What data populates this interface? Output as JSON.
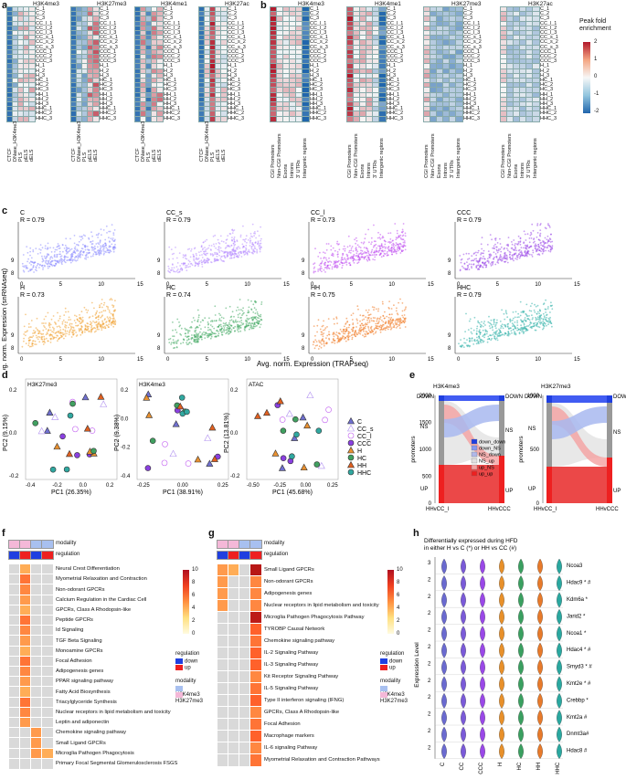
{
  "panels": {
    "a": "a",
    "b": "b",
    "c": "c",
    "d": "d",
    "e": "e",
    "f": "f",
    "g": "g",
    "h": "h"
  },
  "rows": [
    "C_1",
    "C_2",
    "C_3",
    "CC_l_1",
    "CC_l_2",
    "CC_l_3",
    "CC_s_1",
    "CC_s_2",
    "CC_s_3",
    "CCC_1",
    "CCC_2",
    "CCC_3",
    "H_1",
    "H_2",
    "H_3",
    "HC_1",
    "HC_2",
    "HC_3",
    "HH_1",
    "HH_2",
    "HH_3",
    "HHC_1",
    "HHC_2",
    "HHC_3"
  ],
  "panel_a": {
    "titles": [
      "H3K4me3",
      "H3K27me3",
      "H3K4me1",
      "H3K27ac"
    ],
    "cols": [
      "CTCF",
      "DNase_H3K4me3",
      "PLS",
      "pELS",
      "dELS"
    ]
  },
  "panel_b": {
    "titles": [
      "H3K4me3",
      "H3K4me1",
      "H3K27me3",
      "H3K27ac"
    ],
    "cols": [
      "CGI Promoters",
      "Non-CGI Promoters",
      "Exons",
      "Introns",
      "3' UTRs",
      "Intergenic regions"
    ]
  },
  "legend_ab": {
    "title": "Peak fold enrichment",
    "ticks": [
      "2",
      "1",
      "0",
      "-1",
      "-2"
    ]
  },
  "panel_c": {
    "ylabel": "Avg. norm. Expression (snRNAseq)",
    "xlabel": "Avg. norm. Expression (TRAPseq)",
    "plots": [
      {
        "name": "C",
        "r": "R = 0.79",
        "color": "#8c8cff"
      },
      {
        "name": "CC_s",
        "r": "R = 0.79",
        "color": "#b78cff"
      },
      {
        "name": "CC_l",
        "r": "R = 0.73",
        "color": "#c04cf0"
      },
      {
        "name": "CCC",
        "r": "R = 0.79",
        "color": "#9a48e8"
      },
      {
        "name": "H",
        "r": "R = 0.73",
        "color": "#f0a030"
      },
      {
        "name": "HC",
        "r": "R = 0.74",
        "color": "#40a860"
      },
      {
        "name": "HH",
        "r": "R = 0.75",
        "color": "#f07820"
      },
      {
        "name": "HHC",
        "r": "R = 0.79",
        "color": "#30b0a8"
      }
    ],
    "xticks": [
      "0",
      "5",
      "10",
      "15"
    ],
    "yticks": [
      "8",
      "9"
    ]
  },
  "panel_d": {
    "plots": [
      {
        "title": "H3K27me3",
        "xlabel": "PC1 (26.35%)",
        "ylabel": "PC2 (9.15%)",
        "xticks": [
          "-0.4",
          "-0.2",
          "0.0",
          "0.2"
        ],
        "yticks": [
          "0.2",
          "0.0",
          "-0.2"
        ]
      },
      {
        "title": "H3K4me3",
        "xlabel": "PC1 (38.91%)",
        "ylabel": "PC2 (9.38%)",
        "xticks": [
          "-0.25",
          "0.00",
          "0.25"
        ],
        "yticks": [
          "0.2",
          "0.0",
          "-0.2",
          "-0.4"
        ]
      },
      {
        "title": "ATAC",
        "xlabel": "PC1 (45.68%)",
        "ylabel": "PC2 (13.81%)",
        "xticks": [
          "-0.50",
          "-0.25",
          "0.00",
          "0.25"
        ],
        "yticks": [
          "0.2",
          "0.0",
          "-0.2"
        ]
      }
    ],
    "legend": [
      "C",
      "CC_s",
      "CC_l",
      "CCC",
      "H",
      "HC",
      "HH",
      "HHC"
    ]
  },
  "panel_e": {
    "left": {
      "title": "H3K4me3",
      "ylabel": "promoters",
      "yticks": [
        "2000",
        "1500",
        "1000",
        "500",
        "0"
      ],
      "x": [
        "HHvCC_l",
        "HHvCCC"
      ],
      "states": [
        "DOWN",
        "NS",
        "UP"
      ]
    },
    "right": {
      "title": "H3K27me3",
      "ylabel": "promoters",
      "yticks": [
        "1000",
        "500",
        "0"
      ],
      "x": [
        "HHvCC_l",
        "HHvCCC"
      ],
      "states": [
        "DOWN",
        "NS",
        "UP"
      ]
    },
    "legend": [
      "down_down",
      "down_NS",
      "NS_down",
      "NS_up",
      "up_NS",
      "up_up"
    ]
  },
  "panel_f": {
    "header": [
      "modality",
      "regulation"
    ],
    "rows": [
      "Neural Crest Differentiation",
      "Myometrial Relaxation and Contraction",
      "Non-odorant GPCRs",
      "Calcium Regulation in the Cardiac Cell",
      "GPCRs, Class A Rhodopsin-like",
      "Peptide GPCRs",
      "Id Signaling",
      "TGF Beta Signaling",
      "Monoamine GPCRs",
      "Focal Adhesion",
      "Adipogenesis genes",
      "PPAR signaling pathway",
      "Fatty Acid Biosynthesis",
      "Triacylglyceride Synthesis",
      "Nuclear receptors in lipid metabolism and toxicity",
      "Leptin and adiponectin",
      "Chemokine signaling pathway",
      "Small Ligand GPCRs",
      "Microglia Pathogen Phagocytosis",
      "Primary Focal Segmental Glomerulosclerosis FSGS"
    ],
    "scale": [
      "10",
      "8",
      "6",
      "4",
      "2",
      "0"
    ]
  },
  "panel_g": {
    "rows": [
      "Small Ligand GPCRs",
      "Non-odorant GPCRs",
      "Adipogenesis genes",
      "Nuclear receptors in lipid metabolism and toxicity",
      "Microglia Pathogen Phagocytosis Pathway",
      "TYROBP Causal Network",
      "Chemokine signaling pathway",
      "IL-2 Signaling Pathway",
      "IL-3 Signaling Pathway",
      "Kit Receptor Signaling Pathway",
      "IL-5 Signaling Pathway",
      "Type II interferon signaling (IFNG)",
      "GPCRs, Class A Rhodopsin-like",
      "Focal Adhesion",
      "Macrophage markers",
      "IL-6 signaling Pathway",
      "Myometrial Relaxation and Contraction Pathways"
    ],
    "scale": [
      "10",
      "8",
      "6",
      "4",
      "2",
      "0"
    ]
  },
  "legend_fg": {
    "regulation_title": "regulation",
    "down": "down",
    "up": "up",
    "modality_title": "modality",
    "m1": "H3K4me3",
    "m2": "H3K27me3"
  },
  "panel_h": {
    "title": "Differentially expressed during HFD in either H vs C (*) or HH vs CC (#)",
    "ylabel": "Expression Level",
    "genes": [
      "Ncoa3",
      "Hdac9 * #",
      "Kdm6a *",
      "Jarid2 *",
      "Ncoa1 *",
      "Hdac4 * #",
      "Smyd3 * #",
      "Kmt2e * #",
      "Crebbp *",
      "Kmt2a #",
      "Dnmt3a#",
      "Hdac8 #"
    ],
    "groups": [
      "C",
      "CC",
      "CCC",
      "H",
      "HC",
      "HH",
      "HHC"
    ],
    "colors": [
      "#6a6ad0",
      "#7a5ad8",
      "#9a48e8",
      "#e8902a",
      "#3aa060",
      "#e87a2a",
      "#2aa8a0"
    ]
  }
}
